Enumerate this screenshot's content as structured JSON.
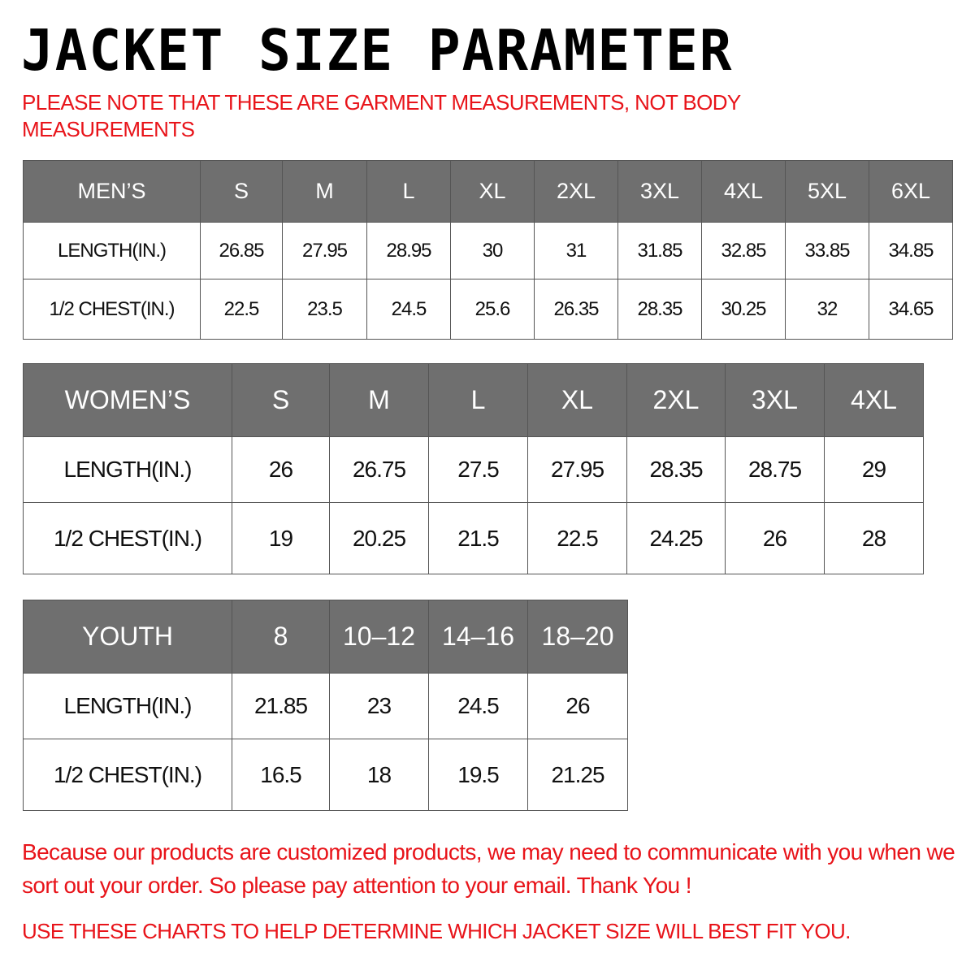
{
  "title": "JACKET SIZE PARAMETER",
  "note": "PLEASE NOTE THAT THESE ARE GARMENT MEASUREMENTS, NOT BODY MEASUREMENTS",
  "colors": {
    "header_bg": "#6f6f6f",
    "accent_red": "#e8141a"
  },
  "tables": {
    "men": {
      "header": [
        "MEN’S",
        "S",
        "M",
        "L",
        "XL",
        "2XL",
        "3XL",
        "4XL",
        "5XL",
        "6XL"
      ],
      "rows": [
        [
          "LENGTH(IN.)",
          "26.85",
          "27.95",
          "28.95",
          "30",
          "31",
          "31.85",
          "32.85",
          "33.85",
          "34.85"
        ],
        [
          "1/2 CHEST(IN.)",
          "22.5",
          "23.5",
          "24.5",
          "25.6",
          "26.35",
          "28.35",
          "30.25",
          "32",
          "34.65"
        ]
      ]
    },
    "women": {
      "header": [
        "WOMEN’S",
        "S",
        "M",
        "L",
        "XL",
        "2XL",
        "3XL",
        "4XL"
      ],
      "rows": [
        [
          "LENGTH(IN.)",
          "26",
          "26.75",
          "27.5",
          "27.95",
          "28.35",
          "28.75",
          "29"
        ],
        [
          "1/2 CHEST(IN.)",
          "19",
          "20.25",
          "21.5",
          "22.5",
          "24.25",
          "26",
          "28"
        ]
      ]
    },
    "youth": {
      "header": [
        "YOUTH",
        "8",
        "10–12",
        "14–16",
        "18–20"
      ],
      "rows": [
        [
          "LENGTH(IN.)",
          "21.85",
          "23",
          "24.5",
          "26"
        ],
        [
          "1/2 CHEST(IN.)",
          "16.5",
          "18",
          "19.5",
          "21.25"
        ]
      ]
    }
  },
  "footer": {
    "message": "Because our products are customized products, we may need to communicate with you when we sort out your order. So please pay attention to your email. Thank You !",
    "instruction": "USE THESE CHARTS TO HELP DETERMINE WHICH JACKET SIZE WILL BEST FIT YOU."
  }
}
